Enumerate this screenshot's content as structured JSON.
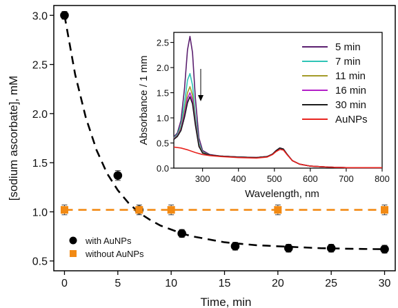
{
  "chart_data": [
    {
      "type": "scatter",
      "xlabel": "Time, min",
      "ylabel": "[sodium ascorbate], mM",
      "xlim": [
        -1,
        31
      ],
      "ylim": [
        0.4,
        3.1
      ],
      "xticks": [
        0,
        5,
        10,
        15,
        20,
        25,
        30
      ],
      "yticks": [
        0.5,
        1.0,
        1.5,
        2.0,
        2.5,
        3.0
      ],
      "ytick_labels": [
        "0.5",
        "1.0",
        "1.5",
        "2.0",
        "2.5",
        "3.0"
      ],
      "legend_position": "bottom-left",
      "series": [
        {
          "name": "with AuNPs",
          "marker": "circle",
          "color": "#000000",
          "x": [
            0,
            5,
            7,
            11,
            16,
            21,
            25,
            30
          ],
          "y": [
            3.0,
            1.37,
            1.02,
            0.78,
            0.65,
            0.63,
            0.63,
            0.62
          ],
          "yerr": [
            0.04,
            0.05,
            0.03,
            0.04,
            0.04,
            0.04,
            0.04,
            0.04
          ]
        },
        {
          "name": "without AuNPs",
          "marker": "square",
          "color": "#f28a14",
          "x": [
            0,
            7,
            10,
            20,
            30
          ],
          "y": [
            1.02,
            1.02,
            1.02,
            1.02,
            1.02
          ],
          "yerr": [
            0.05,
            0.05,
            0.05,
            0.05,
            0.05
          ]
        }
      ],
      "fits": [
        {
          "series": "with AuNPs",
          "style": "dashed",
          "color": "#000000",
          "x": [
            0,
            1,
            2,
            3,
            4,
            5,
            6,
            7,
            8,
            9,
            10,
            11,
            12,
            13,
            14,
            15,
            16,
            17,
            18,
            19,
            20,
            21,
            22,
            23,
            24,
            25,
            26,
            27,
            28,
            29,
            30
          ],
          "y": [
            3.0,
            2.4,
            1.96,
            1.63,
            1.39,
            1.22,
            1.09,
            0.99,
            0.92,
            0.86,
            0.82,
            0.78,
            0.75,
            0.73,
            0.71,
            0.69,
            0.68,
            0.67,
            0.66,
            0.655,
            0.65,
            0.645,
            0.64,
            0.635,
            0.63,
            0.628,
            0.626,
            0.624,
            0.622,
            0.621,
            0.62
          ]
        },
        {
          "series": "without AuNPs",
          "style": "dashed",
          "color": "#f28a14",
          "x": [
            0,
            30
          ],
          "y": [
            1.02,
            1.02
          ]
        }
      ]
    },
    {
      "type": "line",
      "xlabel": "Wavelength, nm",
      "ylabel": "Absorbance / 1 mm",
      "xlim": [
        220,
        800
      ],
      "ylim": [
        0,
        2.7
      ],
      "xticks": [
        300,
        400,
        500,
        600,
        700,
        800
      ],
      "yticks": [
        0.0,
        0.5,
        1.0,
        1.5,
        2.0,
        2.5
      ],
      "ytick_labels": [
        "0.0",
        "0.5",
        "1.0",
        "1.5",
        "2.0",
        "2.5"
      ],
      "legend_position": "top-right",
      "series": [
        {
          "name": "5 min",
          "color": "#5a1e6e",
          "x": [
            220,
            230,
            240,
            250,
            258,
            265,
            272,
            280,
            290,
            300,
            320,
            350,
            400,
            450,
            480,
            495,
            505,
            515,
            525,
            535,
            550,
            570,
            600,
            650,
            700,
            750,
            800
          ],
          "y": [
            0.62,
            0.7,
            0.95,
            1.6,
            2.35,
            2.62,
            2.3,
            1.4,
            0.6,
            0.35,
            0.27,
            0.24,
            0.22,
            0.21,
            0.23,
            0.28,
            0.35,
            0.4,
            0.38,
            0.28,
            0.15,
            0.08,
            0.04,
            0.02,
            0.01,
            0.01,
            0.01
          ]
        },
        {
          "name": "7 min",
          "color": "#2ec4b6",
          "x": [
            220,
            230,
            240,
            250,
            258,
            265,
            272,
            280,
            290,
            300,
            320,
            350,
            400,
            450,
            480,
            495,
            505,
            515,
            525,
            535,
            550,
            570,
            600,
            650,
            700,
            750,
            800
          ],
          "y": [
            0.6,
            0.67,
            0.85,
            1.3,
            1.75,
            1.88,
            1.65,
            1.05,
            0.5,
            0.32,
            0.26,
            0.24,
            0.22,
            0.21,
            0.23,
            0.28,
            0.35,
            0.4,
            0.38,
            0.28,
            0.15,
            0.08,
            0.04,
            0.02,
            0.01,
            0.01,
            0.01
          ]
        },
        {
          "name": "11 min",
          "color": "#a39a27",
          "x": [
            220,
            230,
            240,
            250,
            258,
            265,
            272,
            280,
            290,
            300,
            320,
            350,
            400,
            450,
            480,
            495,
            505,
            515,
            525,
            535,
            550,
            570,
            600,
            650,
            700,
            750,
            800
          ],
          "y": [
            0.59,
            0.65,
            0.8,
            1.15,
            1.5,
            1.62,
            1.45,
            0.95,
            0.46,
            0.31,
            0.26,
            0.24,
            0.22,
            0.21,
            0.23,
            0.28,
            0.35,
            0.4,
            0.38,
            0.28,
            0.15,
            0.08,
            0.04,
            0.02,
            0.01,
            0.01,
            0.01
          ]
        },
        {
          "name": "16 min",
          "color": "#b21ec8",
          "x": [
            220,
            230,
            240,
            250,
            258,
            265,
            272,
            280,
            290,
            300,
            320,
            350,
            400,
            450,
            480,
            495,
            505,
            515,
            525,
            535,
            550,
            570,
            600,
            650,
            700,
            750,
            800
          ],
          "y": [
            0.58,
            0.64,
            0.77,
            1.08,
            1.38,
            1.5,
            1.35,
            0.9,
            0.44,
            0.3,
            0.26,
            0.24,
            0.22,
            0.21,
            0.23,
            0.28,
            0.35,
            0.4,
            0.38,
            0.28,
            0.15,
            0.08,
            0.04,
            0.02,
            0.01,
            0.01,
            0.01
          ]
        },
        {
          "name": "30 min",
          "color": "#1a1a1a",
          "x": [
            220,
            230,
            240,
            250,
            258,
            265,
            272,
            280,
            290,
            300,
            320,
            350,
            400,
            450,
            480,
            495,
            505,
            515,
            525,
            535,
            550,
            570,
            600,
            650,
            700,
            750,
            800
          ],
          "y": [
            0.57,
            0.63,
            0.75,
            1.02,
            1.3,
            1.42,
            1.28,
            0.86,
            0.43,
            0.3,
            0.26,
            0.24,
            0.22,
            0.21,
            0.23,
            0.28,
            0.35,
            0.4,
            0.38,
            0.28,
            0.15,
            0.08,
            0.04,
            0.02,
            0.01,
            0.01,
            0.01
          ]
        },
        {
          "name": "AuNPs",
          "color": "#e8231e",
          "x": [
            220,
            240,
            260,
            280,
            300,
            320,
            350,
            400,
            450,
            480,
            495,
            505,
            515,
            525,
            535,
            550,
            570,
            600,
            650,
            700,
            750,
            800
          ],
          "y": [
            0.42,
            0.4,
            0.36,
            0.31,
            0.27,
            0.25,
            0.23,
            0.21,
            0.2,
            0.22,
            0.27,
            0.33,
            0.37,
            0.36,
            0.27,
            0.15,
            0.08,
            0.04,
            0.02,
            0.01,
            0.01,
            0.01
          ]
        }
      ]
    }
  ]
}
